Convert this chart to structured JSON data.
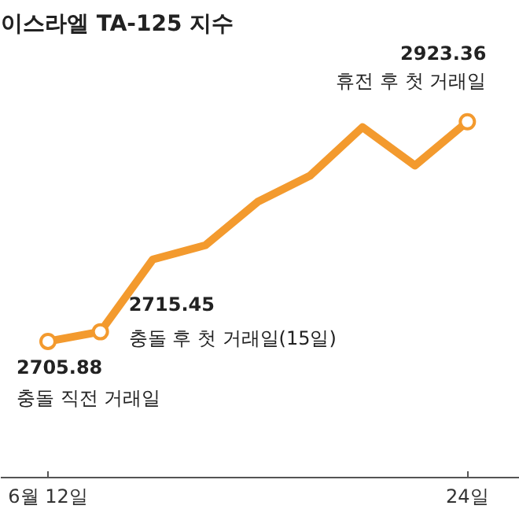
{
  "chart_data": {
    "type": "line",
    "title": "이스라엘 TA-125 지수",
    "categories": [
      "6월 12일",
      null,
      null,
      null,
      null,
      null,
      null,
      null,
      "24일"
    ],
    "values": [
      2705.88,
      2715.45,
      2787,
      2801,
      2844,
      2870,
      2918,
      2880,
      2923.36
    ],
    "value_labels": [
      "2705.88",
      "2715.45",
      null,
      null,
      null,
      null,
      null,
      null,
      "2923.36"
    ],
    "color": "#f39a2e",
    "grid": false,
    "annotations": [
      "충돌 직전 거래일",
      "충돌 후 첫 거래일(15일)",
      "휴전 후 첫 거래일"
    ]
  }
}
